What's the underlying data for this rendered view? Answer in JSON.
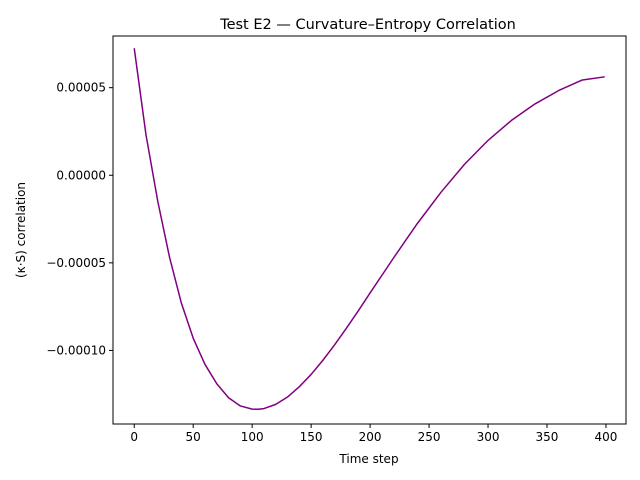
{
  "chart_data": {
    "type": "line",
    "title": "Test E2 — Curvature–Entropy Correlation",
    "xlabel": "Time step",
    "ylabel": "(κ·S) correlation",
    "xlim": [
      -18,
      417
    ],
    "ylim": [
      -0.000142,
      7.95e-05
    ],
    "xticks": [
      0,
      50,
      100,
      150,
      200,
      250,
      300,
      350,
      400
    ],
    "xtick_labels": [
      "0",
      "50",
      "100",
      "150",
      "200",
      "250",
      "300",
      "350",
      "400"
    ],
    "yticks": [
      -0.0001,
      -5e-05,
      0.0,
      5e-05
    ],
    "ytick_labels": [
      "−0.00010",
      "−0.00005",
      "0.00000",
      "0.00005"
    ],
    "grid": false,
    "series": [
      {
        "color": "#800080",
        "x": [
          0,
          10,
          20,
          30,
          40,
          50,
          60,
          70,
          80,
          90,
          100,
          105,
          110,
          120,
          130,
          140,
          150,
          160,
          170,
          180,
          190,
          200,
          220,
          240,
          260,
          280,
          300,
          320,
          340,
          360,
          380,
          399
        ],
        "y": [
          7.25e-05,
          2.3e-05,
          -1.5e-05,
          -4.7e-05,
          -7.3e-05,
          -9.3e-05,
          -0.000108,
          -0.000119,
          -0.000127,
          -0.0001317,
          -0.0001335,
          -0.0001336,
          -0.0001332,
          -0.0001308,
          -0.0001266,
          -0.0001207,
          -0.0001137,
          -0.0001056,
          -9.67e-05,
          -8.72e-05,
          -7.74e-05,
          -6.72e-05,
          -4.71e-05,
          -2.76e-05,
          -9.8e-06,
          6.2e-06,
          1.99e-05,
          3.14e-05,
          4.08e-05,
          4.84e-05,
          5.44e-05,
          5.62e-05
        ]
      }
    ]
  }
}
